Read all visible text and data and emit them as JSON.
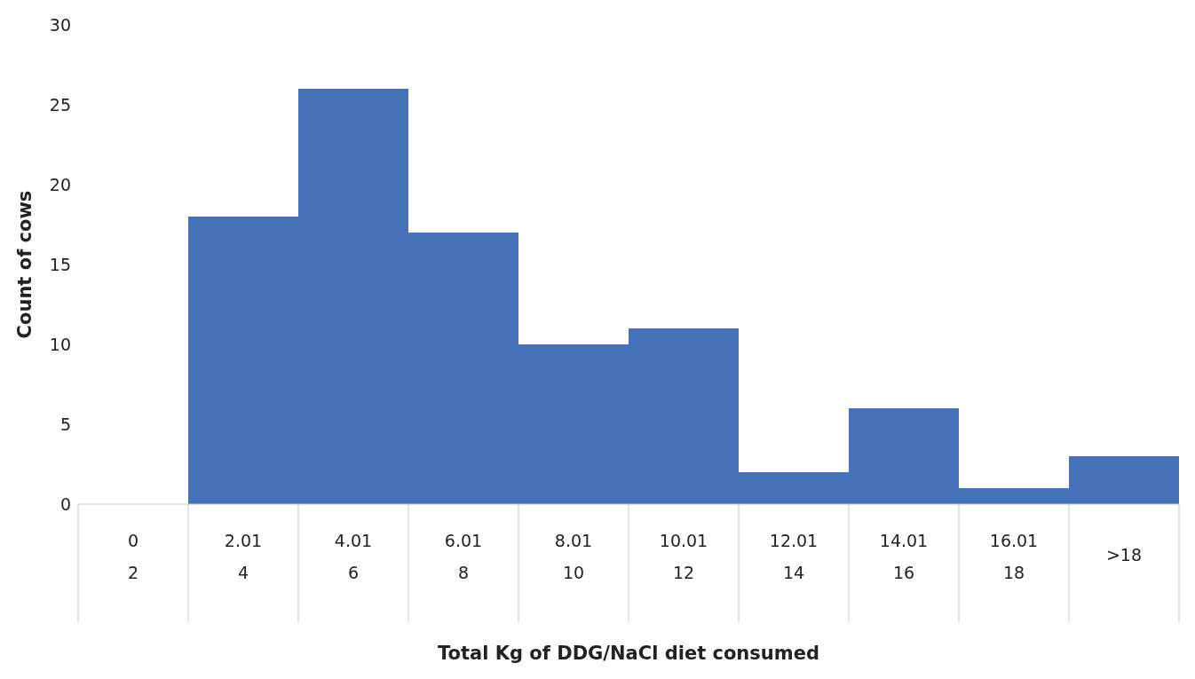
{
  "chart_data": {
    "type": "bar",
    "xlabel": "Total Kg of DDG/NaCl diet consumed",
    "ylabel": "Count of cows",
    "categories": [
      "0\n2",
      "2.01\n4",
      "4.01\n6",
      "6.01\n8",
      "8.01\n10",
      "10.01\n12",
      "12.01\n14",
      "14.01\n16",
      "16.01\n18",
      ">18"
    ],
    "values": [
      0,
      18,
      26,
      17,
      10,
      11,
      2,
      6,
      1,
      3
    ],
    "color": "#4672b8",
    "ylim": [
      0,
      30
    ],
    "yticks": [
      0,
      5,
      10,
      15,
      20,
      25,
      30
    ],
    "grid": false,
    "legend": false
  }
}
